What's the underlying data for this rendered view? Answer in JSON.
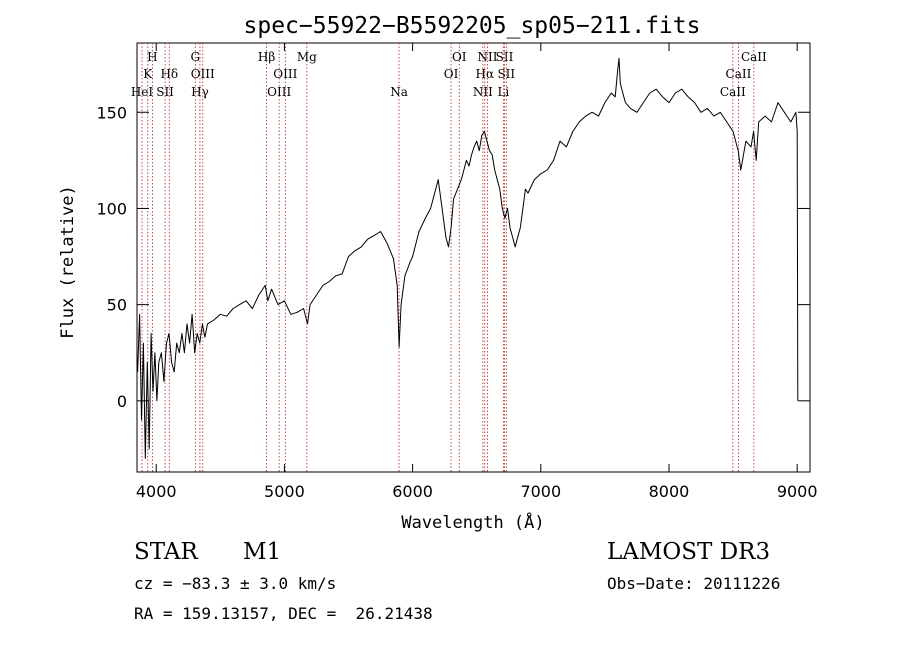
{
  "chart_data": {
    "type": "line",
    "title": "spec−55922−B5592205_sp05−211.fits",
    "xlabel": "Wavelength (Å)",
    "ylabel": "Flux (relative)",
    "xlim": [
      3850,
      9100
    ],
    "ylim": [
      -37,
      186
    ],
    "xticks": [
      4000,
      5000,
      6000,
      7000,
      8000,
      9000
    ],
    "yticks": [
      0,
      50,
      100,
      150
    ],
    "grid": false,
    "line_color": "#000000",
    "marker_color": "#b22222",
    "series": [
      {
        "x": [
          3855,
          3870,
          3885,
          3900,
          3915,
          3930,
          3945,
          3960,
          3975,
          3990,
          4005,
          4020,
          4040,
          4060,
          4080,
          4100,
          4120,
          4140,
          4160,
          4180,
          4200,
          4220,
          4240,
          4260,
          4280,
          4300,
          4320,
          4340,
          4360,
          4380,
          4400,
          4450,
          4500,
          4550,
          4600,
          4650,
          4700,
          4750,
          4800,
          4850,
          4870,
          4900,
          4950,
          5000,
          5050,
          5100,
          5150,
          5180,
          5200,
          5250,
          5300,
          5350,
          5400,
          5450,
          5500,
          5550,
          5600,
          5650,
          5700,
          5750,
          5800,
          5850,
          5880,
          5895,
          5910,
          5940,
          5980,
          6000,
          6050,
          6100,
          6140,
          6180,
          6200,
          6230,
          6260,
          6280,
          6300,
          6320,
          6350,
          6380,
          6400,
          6420,
          6440,
          6460,
          6480,
          6500,
          6520,
          6540,
          6560,
          6580,
          6600,
          6620,
          6640,
          6660,
          6680,
          6700,
          6720,
          6740,
          6760,
          6780,
          6800,
          6820,
          6840,
          6860,
          6880,
          6900,
          6950,
          7000,
          7050,
          7100,
          7150,
          7200,
          7250,
          7300,
          7350,
          7400,
          7450,
          7500,
          7550,
          7580,
          7600,
          7610,
          7620,
          7640,
          7660,
          7700,
          7750,
          7800,
          7850,
          7900,
          7950,
          8000,
          8050,
          8100,
          8150,
          8200,
          8250,
          8300,
          8350,
          8400,
          8450,
          8500,
          8540,
          8560,
          8600,
          8640,
          8660,
          8680,
          8700,
          8750,
          8800,
          8850,
          8900,
          8920,
          8950,
          8990,
          9000,
          9005
        ],
        "y": [
          15,
          45,
          -10,
          30,
          -30,
          20,
          -25,
          35,
          5,
          25,
          0,
          20,
          25,
          10,
          30,
          35,
          20,
          15,
          30,
          25,
          35,
          25,
          40,
          30,
          45,
          25,
          35,
          30,
          40,
          33,
          40,
          42,
          45,
          44,
          48,
          50,
          52,
          48,
          55,
          60,
          52,
          58,
          50,
          52,
          45,
          46,
          48,
          40,
          50,
          55,
          60,
          62,
          65,
          66,
          75,
          78,
          80,
          84,
          86,
          88,
          82,
          74,
          60,
          28,
          50,
          65,
          72,
          75,
          88,
          95,
          100,
          110,
          115,
          100,
          85,
          80,
          90,
          105,
          110,
          115,
          120,
          125,
          122,
          128,
          132,
          135,
          130,
          138,
          140,
          135,
          130,
          128,
          120,
          115,
          110,
          100,
          95,
          100,
          90,
          85,
          80,
          85,
          90,
          100,
          110,
          108,
          115,
          118,
          120,
          125,
          135,
          132,
          140,
          145,
          148,
          150,
          148,
          155,
          160,
          158,
          172,
          178,
          165,
          160,
          155,
          152,
          150,
          155,
          160,
          162,
          158,
          155,
          160,
          162,
          158,
          155,
          150,
          152,
          148,
          150,
          145,
          140,
          130,
          120,
          135,
          132,
          140,
          125,
          145,
          148,
          145,
          155,
          150,
          148,
          145,
          150,
          140,
          0
        ]
      }
    ],
    "line_markers": [
      {
        "label": "H",
        "x": 3970,
        "row": 0
      },
      {
        "label": "K",
        "x": 3934,
        "row": 1
      },
      {
        "label": "HeI",
        "x": 3889,
        "row": 2
      },
      {
        "label": "SII",
        "x": 4069,
        "row": 2
      },
      {
        "label": "Hδ",
        "x": 4102,
        "row": 1
      },
      {
        "label": "G",
        "x": 4305,
        "row": 0
      },
      {
        "label": "OIII",
        "x": 4363,
        "row": 1
      },
      {
        "label": "Hγ",
        "x": 4341,
        "row": 2
      },
      {
        "label": "Hβ",
        "x": 4861,
        "row": 0
      },
      {
        "label": "OIII",
        "x": 5007,
        "row": 1
      },
      {
        "label": "OIII",
        "x": 4959,
        "row": 2
      },
      {
        "label": "Mg",
        "x": 5175,
        "row": 0
      },
      {
        "label": "Na",
        "x": 5894,
        "row": 2
      },
      {
        "label": "OI",
        "x": 6364,
        "row": 0
      },
      {
        "label": "OI",
        "x": 6300,
        "row": 1
      },
      {
        "label": "NII",
        "x": 6584,
        "row": 0
      },
      {
        "label": "SII",
        "x": 6717,
        "row": 0
      },
      {
        "label": "Hα",
        "x": 6563,
        "row": 1
      },
      {
        "label": "SII",
        "x": 6731,
        "row": 1
      },
      {
        "label": "NII",
        "x": 6548,
        "row": 2
      },
      {
        "label": "Li",
        "x": 6708,
        "row": 2
      },
      {
        "label": "CaII",
        "x": 8662,
        "row": 0
      },
      {
        "label": "CaII",
        "x": 8542,
        "row": 1
      },
      {
        "label": "CaII",
        "x": 8498,
        "row": 2
      }
    ]
  },
  "info": {
    "object_class": "STAR",
    "subclass": "M1",
    "survey": "LAMOST DR3",
    "cz": "cz = −83.3 ± 3.0 km/s",
    "obs_date": "Obs−Date: 20111226",
    "coords": "RA = 159.13157, DEC =  26.21438"
  }
}
